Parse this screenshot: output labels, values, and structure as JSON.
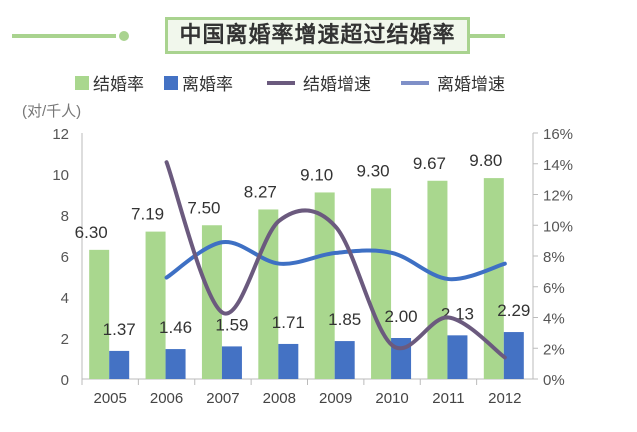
{
  "title": "中国离婚率增速超过结婚率",
  "colors": {
    "marriage_bar": "#a9d78e",
    "divorce_bar": "#4472c4",
    "marriage_growth": "#6b5a7e",
    "divorce_growth": "#3e70c4",
    "divorce_growth_legend": "#7f90c8",
    "accent": "#a9d38f"
  },
  "chart_data": {
    "type": "bar+line",
    "title": "中国离婚率增速超过结婚率",
    "categories": [
      "2005",
      "2006",
      "2007",
      "2008",
      "2009",
      "2010",
      "2011",
      "2012"
    ],
    "ylabel": "(对/千人)",
    "ylim": [
      0,
      12
    ],
    "yticks": [
      "0",
      "2",
      "4",
      "6",
      "8",
      "10",
      "12"
    ],
    "y2lim": [
      0,
      16
    ],
    "y2ticks": [
      "0%",
      "2%",
      "4%",
      "6%",
      "8%",
      "10%",
      "12%",
      "14%",
      "16%"
    ],
    "legend_position": "top",
    "series": [
      {
        "name": "结婚率",
        "type": "bar",
        "axis": "left",
        "values": [
          6.3,
          7.19,
          7.5,
          8.27,
          9.1,
          9.3,
          9.67,
          9.8
        ],
        "labels": [
          "6.30",
          "7.19",
          "7.50",
          "8.27",
          "9.10",
          "9.30",
          "9.67",
          "9.80"
        ]
      },
      {
        "name": "离婚率",
        "type": "bar",
        "axis": "left",
        "values": [
          1.37,
          1.46,
          1.59,
          1.71,
          1.85,
          2.0,
          2.13,
          2.29
        ],
        "labels": [
          "1.37",
          "1.46",
          "1.59",
          "1.71",
          "1.85",
          "2.00",
          "2.13",
          "2.29"
        ]
      },
      {
        "name": "结婚增速",
        "type": "line",
        "axis": "right",
        "values": [
          null,
          14.1,
          4.3,
          10.3,
          9.9,
          2.2,
          4.0,
          1.4
        ]
      },
      {
        "name": "离婚增速",
        "type": "line",
        "axis": "right",
        "values": [
          null,
          6.6,
          8.9,
          7.5,
          8.2,
          8.2,
          6.5,
          7.5
        ]
      }
    ]
  }
}
